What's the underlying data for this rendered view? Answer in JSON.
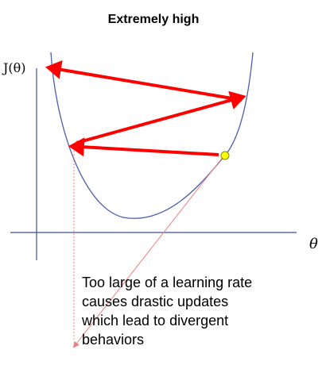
{
  "title": "Extremely high",
  "axes": {
    "ylabel": "J(θ)",
    "xlabel": "θ"
  },
  "caption": {
    "lines": [
      "Too large of a learning rate",
      "causes drastic updates",
      "which lead to divergent",
      "behaviors"
    ]
  },
  "colors": {
    "curve": "#4a5fa8",
    "axis": "#3b4f96",
    "arrow": "#ff0000",
    "start_point": "#ffff00",
    "start_point_border": "#8a8a00",
    "pointer_line": "#f08080"
  }
}
